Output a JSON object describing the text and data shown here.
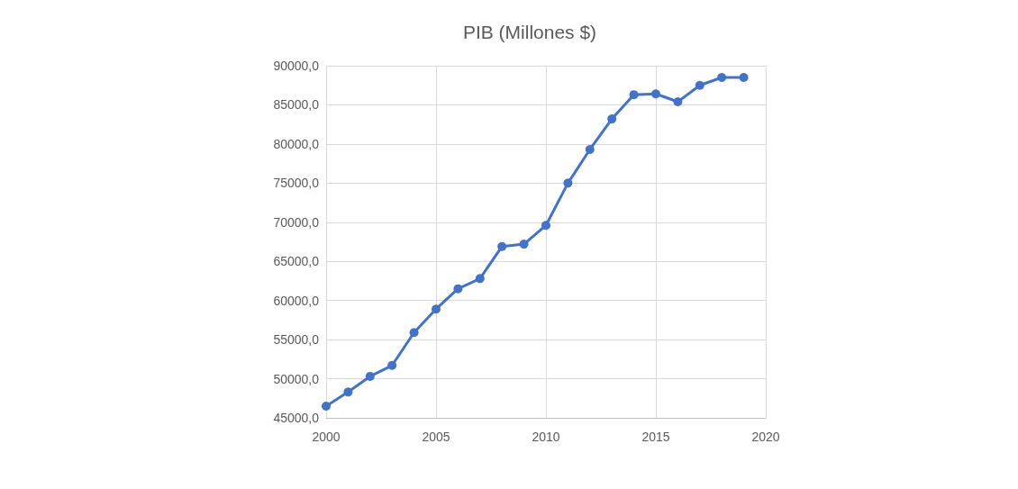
{
  "chart_data": {
    "type": "line",
    "title": "PIB (Millones $)",
    "x": [
      2000,
      2001,
      2002,
      2003,
      2004,
      2005,
      2006,
      2007,
      2008,
      2009,
      2010,
      2011,
      2012,
      2013,
      2014,
      2015,
      2016,
      2017,
      2018,
      2019
    ],
    "series": [
      {
        "color": "#4472c4",
        "values": [
          46500,
          48300,
          50300,
          51700,
          55900,
          58900,
          61500,
          62800,
          66900,
          67200,
          69600,
          75000,
          79300,
          83200,
          86300,
          86400,
          85400,
          87500,
          88500,
          88500
        ]
      }
    ],
    "xlim": [
      2000,
      2020
    ],
    "xticks": [
      2000,
      2005,
      2010,
      2015,
      2020
    ],
    "ylim": [
      45000,
      90000
    ],
    "yticks": [
      {
        "value": 45000,
        "label": "45000,0"
      },
      {
        "value": 50000,
        "label": "50000,0"
      },
      {
        "value": 55000,
        "label": "55000,0"
      },
      {
        "value": 60000,
        "label": "60000,0"
      },
      {
        "value": 65000,
        "label": "65000,0"
      },
      {
        "value": 70000,
        "label": "70000,0"
      },
      {
        "value": 75000,
        "label": "75000,0"
      },
      {
        "value": 80000,
        "label": "80000,0"
      },
      {
        "value": 85000,
        "label": "85000,0"
      },
      {
        "value": 90000,
        "label": "90000,0"
      }
    ],
    "grid": true,
    "marker": "circle",
    "line_style": "solid"
  }
}
